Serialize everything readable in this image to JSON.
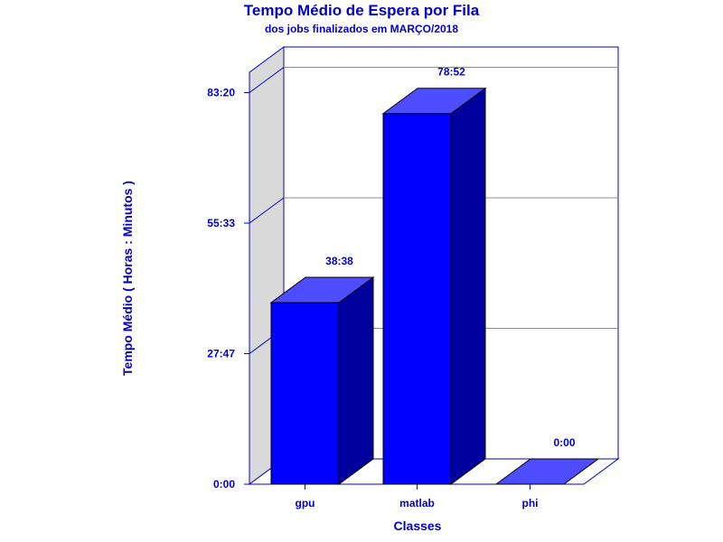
{
  "chart_data": {
    "type": "bar",
    "title": "Tempo Médio de Espera por Fila",
    "subtitle": "dos jobs finalizados em MARÇO/2018",
    "xlabel": "Classes",
    "ylabel": "Tempo Médio ( Horas : Minutos )",
    "categories": [
      "gpu",
      "matlab",
      "phi"
    ],
    "values": [
      38.633,
      78.867,
      0
    ],
    "value_labels": [
      "38:38",
      "78:52",
      "0:00"
    ],
    "y_ticks": [
      0,
      27.783,
      55.55,
      83.333
    ],
    "y_tick_labels": [
      "0:00",
      "27:47",
      "55:33",
      "83:20"
    ],
    "ylim": [
      0,
      83.333
    ],
    "grid": true,
    "colors": {
      "bar_front": "#0000ff",
      "bar_top": "#4d4dff",
      "bar_side": "#00009e",
      "side_wall": "#d9d9d9",
      "frame": "#0000cc",
      "grid": "#8c8c8c"
    }
  }
}
